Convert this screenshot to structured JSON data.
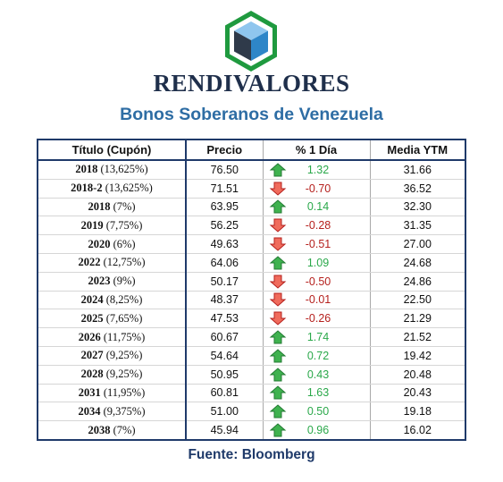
{
  "brand": "RENDIVALORES",
  "subtitle": "Bonos Soberanos de Venezuela",
  "table": {
    "headers": [
      "Título (Cupón)",
      "Precio",
      "% 1 Día",
      "Media YTM"
    ],
    "rows": [
      {
        "year": "2018",
        "coupon": "(13,625%)",
        "price": "76.50",
        "change": "1.32",
        "direction": "up",
        "ytm": "31.66"
      },
      {
        "year": "2018-2",
        "coupon": "(13,625%)",
        "price": "71.51",
        "change": "-0.70",
        "direction": "down",
        "ytm": "36.52"
      },
      {
        "year": "2018",
        "coupon": "(7%)",
        "price": "63.95",
        "change": "0.14",
        "direction": "up",
        "ytm": "32.30"
      },
      {
        "year": "2019",
        "coupon": "(7,75%)",
        "price": "56.25",
        "change": "-0.28",
        "direction": "down",
        "ytm": "31.35"
      },
      {
        "year": "2020",
        "coupon": "(6%)",
        "price": "49.63",
        "change": "-0.51",
        "direction": "down",
        "ytm": "27.00"
      },
      {
        "year": "2022",
        "coupon": "(12,75%)",
        "price": "64.06",
        "change": "1.09",
        "direction": "up",
        "ytm": "24.68"
      },
      {
        "year": "2023",
        "coupon": "(9%)",
        "price": "50.17",
        "change": "-0.50",
        "direction": "down",
        "ytm": "24.86"
      },
      {
        "year": "2024",
        "coupon": "(8,25%)",
        "price": "48.37",
        "change": "-0.01",
        "direction": "down",
        "ytm": "22.50"
      },
      {
        "year": "2025",
        "coupon": "(7,65%)",
        "price": "47.53",
        "change": "-0.26",
        "direction": "down",
        "ytm": "21.29"
      },
      {
        "year": "2026",
        "coupon": "(11,75%)",
        "price": "60.67",
        "change": "1.74",
        "direction": "up",
        "ytm": "21.52"
      },
      {
        "year": "2027",
        "coupon": "(9,25%)",
        "price": "54.64",
        "change": "0.72",
        "direction": "up",
        "ytm": "19.42"
      },
      {
        "year": "2028",
        "coupon": "(9,25%)",
        "price": "50.95",
        "change": "0.43",
        "direction": "up",
        "ytm": "20.48"
      },
      {
        "year": "2031",
        "coupon": "(11,95%)",
        "price": "60.81",
        "change": "1.63",
        "direction": "up",
        "ytm": "20.43"
      },
      {
        "year": "2034",
        "coupon": "(9,375%)",
        "price": "51.00",
        "change": "0.50",
        "direction": "up",
        "ytm": "19.18"
      },
      {
        "year": "2038",
        "coupon": "(7%)",
        "price": "45.94",
        "change": "0.96",
        "direction": "up",
        "ytm": "16.02"
      }
    ]
  },
  "source": "Fuente: Bloomberg",
  "colors": {
    "brand_text": "#1f2f4b",
    "subtitle": "#2e6da4",
    "positive": "#2aa84a",
    "negative": "#b5201d",
    "logo_green": "#1f9a3f",
    "logo_blue": "#2e86c8",
    "logo_dark": "#2f3a4a"
  },
  "icons": {
    "up": "green-up-arrow-icon",
    "down": "red-down-arrow-icon",
    "logo": "cube-hexagon-logo"
  }
}
